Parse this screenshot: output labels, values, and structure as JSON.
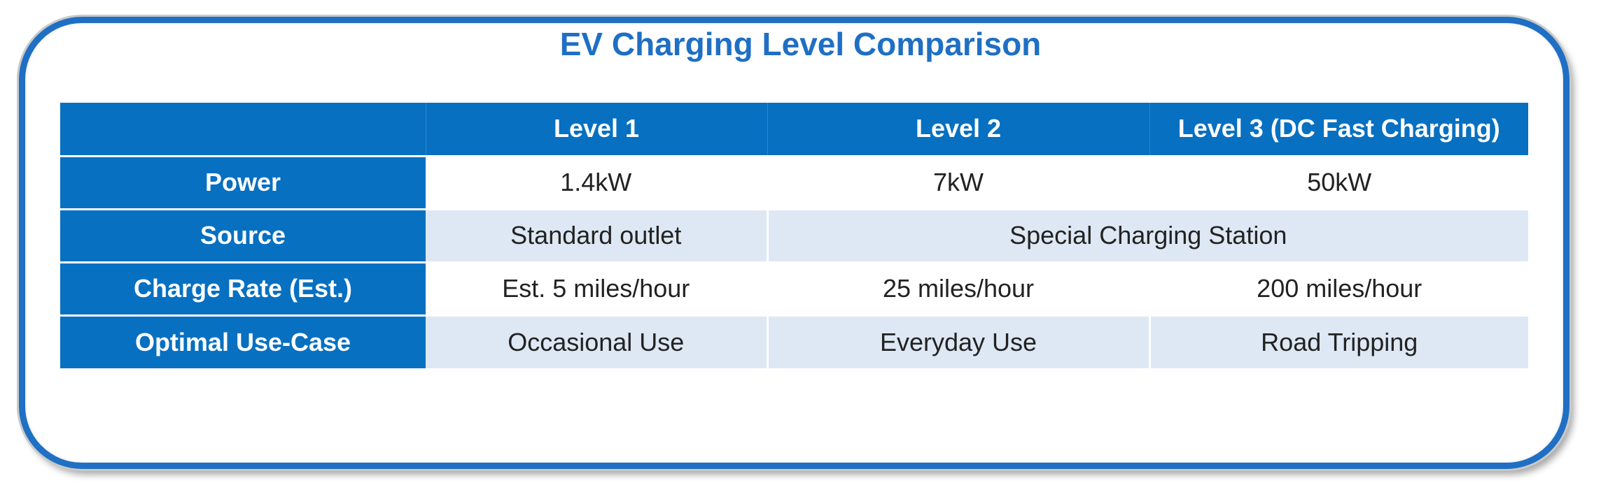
{
  "title": "EV Charging Level Comparison",
  "table": {
    "columns": [
      "",
      "Level 1",
      "Level 2",
      "Level 3 (DC Fast Charging)"
    ],
    "rows": [
      {
        "label": "Power",
        "cells": [
          "1.4kW",
          "7kW",
          "50kW"
        ]
      },
      {
        "label": "Source",
        "cells": [
          "Standard outlet",
          "Special Charging Station"
        ]
      },
      {
        "label": "Charge Rate (Est.)",
        "cells": [
          "Est. 5 miles/hour",
          "25 miles/hour",
          "200 miles/hour"
        ]
      },
      {
        "label": "Optimal Use-Case",
        "cells": [
          "Occasional Use",
          "Everyday Use",
          "Road Tripping"
        ]
      }
    ]
  },
  "colors": {
    "accent": "#1f6fc4",
    "header_fill": "#0770c1",
    "band_fill": "#dde8f4"
  }
}
